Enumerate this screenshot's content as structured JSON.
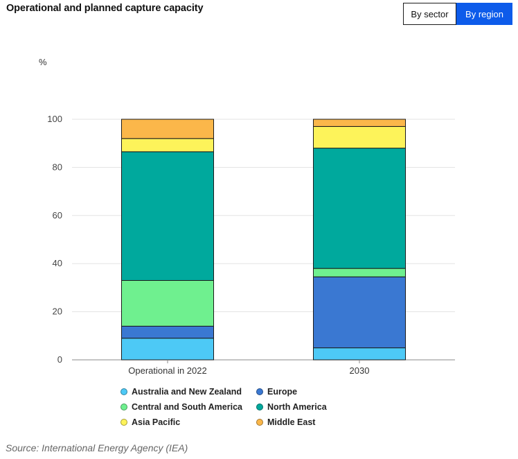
{
  "header": {
    "title": "Operational and planned capture capacity",
    "toggle": {
      "sector_label": "By sector",
      "region_label": "By region",
      "active": "By region"
    }
  },
  "chart_data": {
    "type": "bar",
    "stacked": true,
    "title": "Operational and planned capture capacity",
    "ylabel": "%",
    "xlabel": "",
    "ylim": [
      0,
      100
    ],
    "yticks": [
      0,
      20,
      40,
      60,
      80,
      100
    ],
    "categories": [
      "Operational in 2022",
      "2030"
    ],
    "grid": true,
    "legend_position": "bottom",
    "series": [
      {
        "name": "Australia and New Zealand",
        "color": "#4dc9f6",
        "values": [
          9,
          5
        ]
      },
      {
        "name": "Europe",
        "color": "#3a78d2",
        "values": [
          5,
          29.5
        ]
      },
      {
        "name": "Central and South America",
        "color": "#6ff08f",
        "values": [
          19,
          3.5
        ]
      },
      {
        "name": "North America",
        "color": "#00a99d",
        "values": [
          53.5,
          50
        ]
      },
      {
        "name": "Asia Pacific",
        "color": "#fdf35a",
        "values": [
          5.5,
          9
        ]
      },
      {
        "name": "Middle East",
        "color": "#fbb74a",
        "values": [
          8,
          3
        ]
      }
    ]
  },
  "legend_order": [
    "Australia and New Zealand",
    "Europe",
    "Central and South America",
    "North America",
    "Asia Pacific",
    "Middle East"
  ],
  "source": "Source: International Energy Agency (IEA)"
}
